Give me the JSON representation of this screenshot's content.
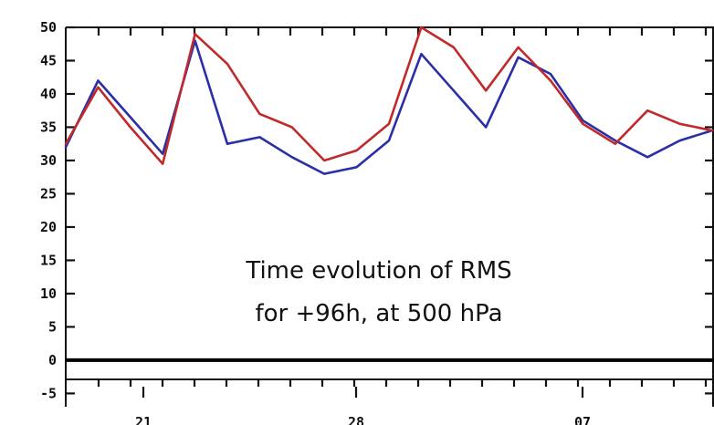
{
  "chart_data": {
    "type": "line",
    "title": "",
    "xlabel": "",
    "ylabel": "",
    "ylim": [
      -7,
      50
    ],
    "y_ticks": [
      -5,
      0,
      5,
      10,
      15,
      20,
      25,
      30,
      35,
      40,
      45,
      50
    ],
    "x_tick_labels": [
      "21",
      "28",
      "07"
    ],
    "x": [
      1,
      3,
      5,
      7,
      9,
      11,
      13,
      15,
      17,
      19,
      21,
      23,
      25,
      27,
      29,
      31,
      33,
      35,
      37,
      39,
      41
    ],
    "series": [
      {
        "color": "#2b2fa6",
        "values": [
          32,
          42,
          36.5,
          31,
          48,
          32.5,
          33.5,
          30.5,
          28,
          29,
          33,
          46,
          40.5,
          35,
          45.5,
          43,
          36,
          33,
          30.5,
          33,
          34.5
        ]
      },
      {
        "color": "#c02a2a",
        "values": [
          32.5,
          41,
          35,
          29.5,
          49,
          44.5,
          37,
          35,
          30,
          31.5,
          35.5,
          50,
          47,
          40.5,
          47,
          42,
          35.5,
          32.5,
          37.5,
          35.5,
          34.5
        ]
      }
    ],
    "zero_line": true,
    "annotation": [
      "Time evolution of RMS",
      "for +96h, at 500 hPa"
    ]
  }
}
